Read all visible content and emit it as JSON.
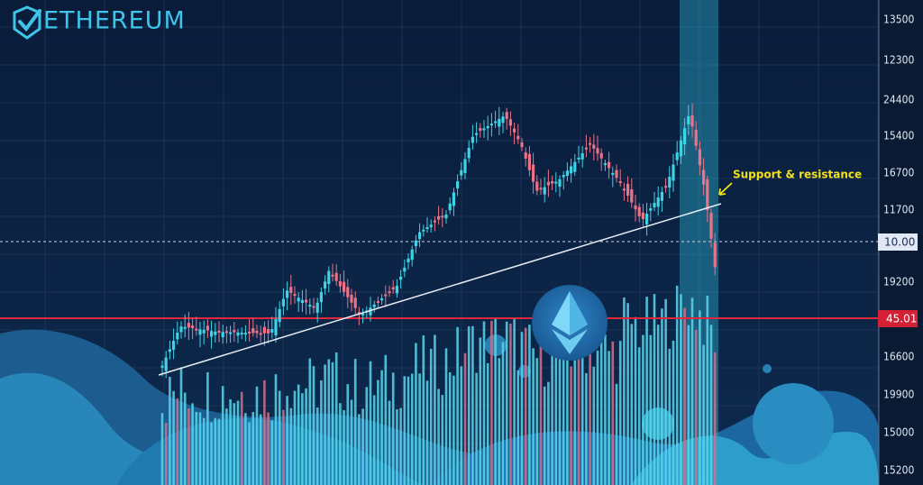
{
  "logo": {
    "text": "ETHEREUM"
  },
  "axis_labels": [
    "13500",
    "12300",
    "24400",
    "15400",
    "16700",
    "11700",
    "10.00",
    "19200",
    "45.01",
    "16600",
    "19900",
    "15000",
    "15200"
  ],
  "annotation": "Support & resistance"
}
